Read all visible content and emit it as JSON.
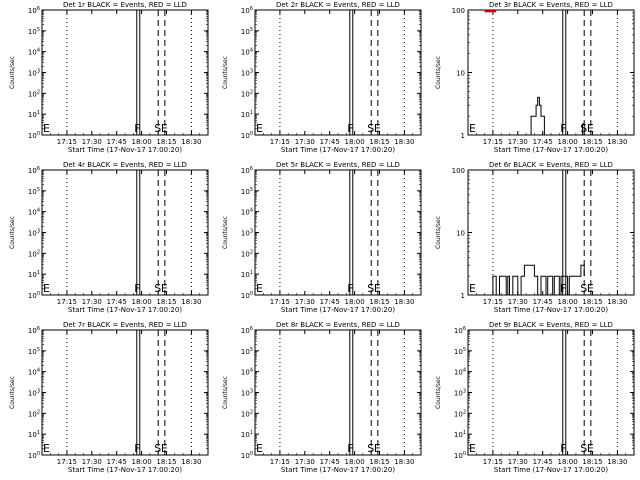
{
  "figure": {
    "background": "#ffffff",
    "foreground": "#000000",
    "lld_color": "#ff0000"
  },
  "chart_data": [
    {
      "type": "line",
      "title": "Det 1r BLACK = Events, RED = LLD",
      "xlabel": "Start Time (17-Nov-17 17:00:20)",
      "ylabel": "Counts/sec",
      "scale": "log",
      "xlim": [
        "17:00",
        "18:40"
      ],
      "xticks": [
        "17:15",
        "17:30",
        "17:45",
        "18:00",
        "18:15",
        "18:30"
      ],
      "yticks": [
        "10^0",
        "10^1",
        "10^2",
        "10^3",
        "10^4",
        "10^5",
        "10^6"
      ],
      "markers": [
        {
          "label": "E",
          "time": "17:00"
        },
        {
          "label": "F",
          "time": "17:58"
        },
        {
          "label": "S",
          "time": "18:10"
        },
        {
          "label": "E",
          "time": "18:14"
        }
      ],
      "series": []
    },
    {
      "type": "line",
      "title": "Det 2r BLACK = Events, RED = LLD",
      "xlabel": "Start Time (17-Nov-17 17:00:20)",
      "ylabel": "Counts/sec",
      "scale": "log",
      "xlim": [
        "17:00",
        "18:40"
      ],
      "xticks": [
        "17:15",
        "17:30",
        "17:45",
        "18:00",
        "18:15",
        "18:30"
      ],
      "yticks": [
        "10^0",
        "10^1",
        "10^2",
        "10^3",
        "10^4",
        "10^5",
        "10^6"
      ],
      "markers": [
        {
          "label": "E",
          "time": "17:00"
        },
        {
          "label": "F",
          "time": "17:58"
        },
        {
          "label": "S",
          "time": "18:10"
        },
        {
          "label": "E",
          "time": "18:14"
        }
      ],
      "series": []
    },
    {
      "type": "line",
      "title": "Det 3r BLACK = Events, RED = LLD",
      "xlabel": "Start Time (17-Nov-17 17:00:20)",
      "ylabel": "Counts/sec",
      "scale": "log",
      "xlim": [
        "17:00",
        "18:40"
      ],
      "ylim": [
        1,
        100
      ],
      "xticks": [
        "17:15",
        "17:30",
        "17:45",
        "18:00",
        "18:15",
        "18:30"
      ],
      "yticks": [
        "1",
        "10",
        "100"
      ],
      "markers": [
        {
          "label": "E",
          "time": "17:00"
        },
        {
          "label": "F",
          "time": "17:58"
        },
        {
          "label": "S",
          "time": "18:10"
        },
        {
          "label": "E",
          "time": "18:14"
        }
      ],
      "series": [
        {
          "color": "#000000",
          "points": [
            [
              "17:38",
              1
            ],
            [
              "17:38",
              2
            ],
            [
              "17:41",
              2
            ],
            [
              "17:41",
              3
            ],
            [
              "17:42",
              3
            ],
            [
              "17:42",
              4
            ],
            [
              "17:43",
              4
            ],
            [
              "17:43",
              3
            ],
            [
              "17:44",
              3
            ],
            [
              "17:44",
              2
            ],
            [
              "17:46",
              2
            ],
            [
              "17:46",
              1
            ]
          ]
        },
        {
          "color": "#ff0000",
          "points": [
            [
              "17:10",
              95
            ],
            [
              "17:17",
              95
            ]
          ]
        },
        {
          "color": "#000000",
          "points": [
            [
              "18:09",
              1
            ],
            [
              "18:09",
              1.5
            ],
            [
              "18:10",
              1.5
            ],
            [
              "18:10",
              1
            ]
          ]
        }
      ]
    },
    {
      "type": "line",
      "title": "Det 4r BLACK = Events, RED = LLD",
      "xlabel": "Start Time (17-Nov-17 17:00:20)",
      "ylabel": "Counts/sec",
      "scale": "log",
      "xlim": [
        "17:00",
        "18:40"
      ],
      "xticks": [
        "17:15",
        "17:30",
        "17:45",
        "18:00",
        "18:15",
        "18:30"
      ],
      "yticks": [
        "10^0",
        "10^1",
        "10^2",
        "10^3",
        "10^4",
        "10^5",
        "10^6"
      ],
      "markers": [
        {
          "label": "E",
          "time": "17:00"
        },
        {
          "label": "F",
          "time": "17:58"
        },
        {
          "label": "S",
          "time": "18:10"
        },
        {
          "label": "E",
          "time": "18:14"
        }
      ],
      "series": []
    },
    {
      "type": "line",
      "title": "Det 5r BLACK = Events, RED = LLD",
      "xlabel": "Start Time (17-Nov-17 17:00:20)",
      "ylabel": "Counts/sec",
      "scale": "log",
      "xlim": [
        "17:00",
        "18:40"
      ],
      "xticks": [
        "17:15",
        "17:30",
        "17:45",
        "18:00",
        "18:15",
        "18:30"
      ],
      "yticks": [
        "10^0",
        "10^1",
        "10^2",
        "10^3",
        "10^4",
        "10^5",
        "10^6"
      ],
      "markers": [
        {
          "label": "E",
          "time": "17:00"
        },
        {
          "label": "F",
          "time": "17:58"
        },
        {
          "label": "S",
          "time": "18:10"
        },
        {
          "label": "E",
          "time": "18:14"
        }
      ],
      "series": []
    },
    {
      "type": "line",
      "title": "Det 6r BLACK = Events, RED = LLD",
      "xlabel": "Start Time (17-Nov-17 17:00:20)",
      "ylabel": "Counts/sec",
      "scale": "log",
      "xlim": [
        "17:00",
        "18:40"
      ],
      "ylim": [
        1,
        100
      ],
      "xticks": [
        "17:15",
        "17:30",
        "17:45",
        "18:00",
        "18:15",
        "18:30"
      ],
      "yticks": [
        "1",
        "10",
        "100"
      ],
      "markers": [
        {
          "label": "E",
          "time": "17:00"
        },
        {
          "label": "F",
          "time": "17:58"
        },
        {
          "label": "S",
          "time": "18:10"
        },
        {
          "label": "E",
          "time": "18:14"
        }
      ],
      "series": [
        {
          "color": "#000000",
          "points": [
            [
              "17:15",
              1
            ],
            [
              "17:15",
              2
            ],
            [
              "17:17",
              2
            ],
            [
              "17:17",
              1
            ],
            [
              "17:19",
              1
            ],
            [
              "17:19",
              2
            ],
            [
              "17:23",
              2
            ],
            [
              "17:23",
              1
            ],
            [
              "17:24",
              1
            ],
            [
              "17:24",
              2
            ],
            [
              "17:25",
              2
            ],
            [
              "17:25",
              1
            ],
            [
              "17:27",
              1
            ],
            [
              "17:27",
              2
            ],
            [
              "17:30",
              2
            ],
            [
              "17:30",
              1
            ],
            [
              "17:32",
              1
            ],
            [
              "17:32",
              2
            ],
            [
              "17:34",
              2
            ],
            [
              "17:34",
              3
            ],
            [
              "17:40",
              3
            ],
            [
              "17:40",
              2
            ],
            [
              "17:42",
              2
            ],
            [
              "17:42",
              1
            ],
            [
              "17:44",
              1
            ],
            [
              "17:44",
              2
            ],
            [
              "17:47",
              2
            ],
            [
              "17:47",
              1
            ],
            [
              "17:48",
              1
            ],
            [
              "17:48",
              2
            ],
            [
              "17:51",
              2
            ],
            [
              "17:51",
              1
            ],
            [
              "17:52",
              1
            ],
            [
              "17:52",
              2
            ],
            [
              "17:55",
              2
            ],
            [
              "17:55",
              1
            ],
            [
              "17:56",
              1
            ],
            [
              "17:56",
              2
            ],
            [
              "18:00",
              2
            ],
            [
              "18:00",
              1
            ],
            [
              "18:01",
              1
            ],
            [
              "18:01",
              2
            ],
            [
              "18:08",
              2
            ],
            [
              "18:08",
              3
            ],
            [
              "18:10",
              3
            ],
            [
              "18:10",
              2
            ]
          ]
        }
      ]
    },
    {
      "type": "line",
      "title": "Det 7r BLACK = Events, RED = LLD",
      "xlabel": "Start Time (17-Nov-17 17:00:20)",
      "ylabel": "Counts/sec",
      "scale": "log",
      "xlim": [
        "17:00",
        "18:40"
      ],
      "xticks": [
        "17:15",
        "17:30",
        "17:45",
        "18:00",
        "18:15",
        "18:30"
      ],
      "yticks": [
        "10^0",
        "10^1",
        "10^2",
        "10^3",
        "10^4",
        "10^5",
        "10^6"
      ],
      "markers": [
        {
          "label": "E",
          "time": "17:00"
        },
        {
          "label": "F",
          "time": "17:58"
        },
        {
          "label": "S",
          "time": "18:10"
        },
        {
          "label": "E",
          "time": "18:14"
        }
      ],
      "series": []
    },
    {
      "type": "line",
      "title": "Det 8r BLACK = Events, RED = LLD",
      "xlabel": "Start Time (17-Nov-17 17:00:20)",
      "ylabel": "Counts/sec",
      "scale": "log",
      "xlim": [
        "17:00",
        "18:40"
      ],
      "xticks": [
        "17:15",
        "17:30",
        "17:45",
        "18:00",
        "18:15",
        "18:30"
      ],
      "yticks": [
        "10^0",
        "10^1",
        "10^2",
        "10^3",
        "10^4",
        "10^5",
        "10^6"
      ],
      "markers": [
        {
          "label": "E",
          "time": "17:00"
        },
        {
          "label": "F",
          "time": "17:58"
        },
        {
          "label": "S",
          "time": "18:10"
        },
        {
          "label": "E",
          "time": "18:14"
        }
      ],
      "series": []
    },
    {
      "type": "line",
      "title": "Det 9r BLACK = Events, RED = LLD",
      "xlabel": "Start Time (17-Nov-17 17:00:20)",
      "ylabel": "Counts/sec",
      "scale": "log",
      "xlim": [
        "17:00",
        "18:40"
      ],
      "xticks": [
        "17:15",
        "17:30",
        "17:45",
        "18:00",
        "18:15",
        "18:30"
      ],
      "yticks": [
        "10^0",
        "10^1",
        "10^2",
        "10^3",
        "10^4",
        "10^5",
        "10^6"
      ],
      "markers": [
        {
          "label": "E",
          "time": "17:00"
        },
        {
          "label": "F",
          "time": "17:58"
        },
        {
          "label": "S",
          "time": "18:10"
        },
        {
          "label": "E",
          "time": "18:14"
        }
      ],
      "series": []
    }
  ]
}
